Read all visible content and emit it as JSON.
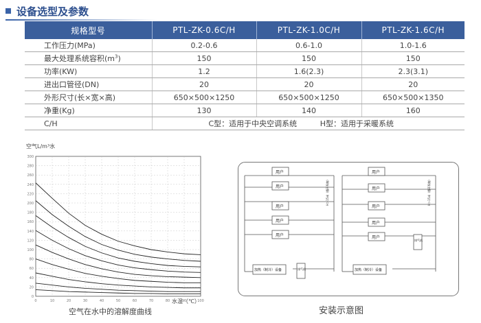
{
  "section": {
    "title": "设备选型及参数"
  },
  "spec_table": {
    "headers": [
      "规格型号",
      "PTL-ZK-0.6C/H",
      "PTL-ZK-1.0C/H",
      "PTL-ZK-1.6C/H"
    ],
    "rows": [
      {
        "label": "工作压力(MPa)",
        "values": [
          "0.2-0.6",
          "0.6-1.0",
          "1.0-1.6"
        ]
      },
      {
        "label": "最大处理系统容积(m³)",
        "values": [
          "150",
          "150",
          "150"
        ]
      },
      {
        "label": "功率(KW)",
        "values": [
          "1.2",
          "1.6(2.3)",
          "2.3(3.1)"
        ]
      },
      {
        "label": "进出口管径(DN)",
        "values": [
          "20",
          "20",
          "20"
        ]
      },
      {
        "label": "外形尺寸(长×宽×高)",
        "values": [
          "650×500×1250",
          "650×500×1250",
          "650×500×1350"
        ]
      },
      {
        "label": "净重(Kg)",
        "values": [
          "130",
          "140",
          "160"
        ]
      }
    ],
    "ch_row": {
      "label": "C/H",
      "c_note": "C型：适用于中央空调系统",
      "h_note": "H型：适用于采暖系统"
    }
  },
  "chart_data": {
    "type": "line",
    "title": "空气在水中的溶解度曲线",
    "ylabel": "空气L/m³水",
    "xlabel": "水温（℃）",
    "ylim": [
      0,
      300
    ],
    "xlim": [
      0,
      100
    ],
    "y_ticks": [
      "300",
      "280",
      "260",
      "240",
      "220",
      "200",
      "180",
      "160",
      "140",
      "120",
      "100",
      "80",
      "60",
      "40",
      "20",
      "0"
    ],
    "x_ticks": [
      "0",
      "10",
      "20",
      "30",
      "40",
      "50",
      "60",
      "70",
      "80",
      "90",
      "100"
    ],
    "x": [
      0,
      10,
      20,
      30,
      40,
      50,
      60,
      70,
      80,
      90,
      100
    ],
    "series": [
      {
        "values": [
          243,
          210,
          178,
          152,
          133,
          118,
          108,
          100,
          95,
          91,
          89
        ]
      },
      {
        "values": [
          205,
          175,
          150,
          128,
          111,
          99,
          90,
          84,
          80,
          77,
          75
        ]
      },
      {
        "values": [
          173,
          148,
          126,
          107,
          93,
          82,
          75,
          70,
          66,
          64,
          63
        ]
      },
      {
        "values": [
          141,
          120,
          102,
          87,
          76,
          67,
          61,
          57,
          54,
          52,
          51
        ]
      },
      {
        "values": [
          110,
          94,
          80,
          68,
          59,
          52,
          47,
          44,
          42,
          41,
          40
        ]
      },
      {
        "values": [
          80,
          68,
          58,
          49,
          43,
          38,
          34,
          32,
          30,
          29,
          29
        ]
      },
      {
        "values": [
          50,
          43,
          36,
          31,
          27,
          24,
          22,
          20,
          19,
          18,
          18
        ]
      },
      {
        "values": [
          28,
          24,
          20,
          17,
          15,
          13,
          12,
          11,
          10,
          10,
          10
        ]
      },
      {
        "values": [
          14,
          12,
          10,
          9,
          8,
          7,
          6,
          6,
          5,
          5,
          5
        ]
      }
    ]
  },
  "schematic": {
    "caption": "安装示意图",
    "user_label": "用户",
    "left": {
      "heater_label": "加热（制冷）设备",
      "device_label": "排气机",
      "note": "H＞15米（循环系统）"
    },
    "right": {
      "heater_label": "加热（制冷）设备",
      "device_label": "排气机",
      "note": "H＞15米（循环系统）"
    }
  },
  "colors": {
    "header_bg": "#3b5f9c",
    "title": "#2d4f8e",
    "accent": "#3a63a8"
  }
}
